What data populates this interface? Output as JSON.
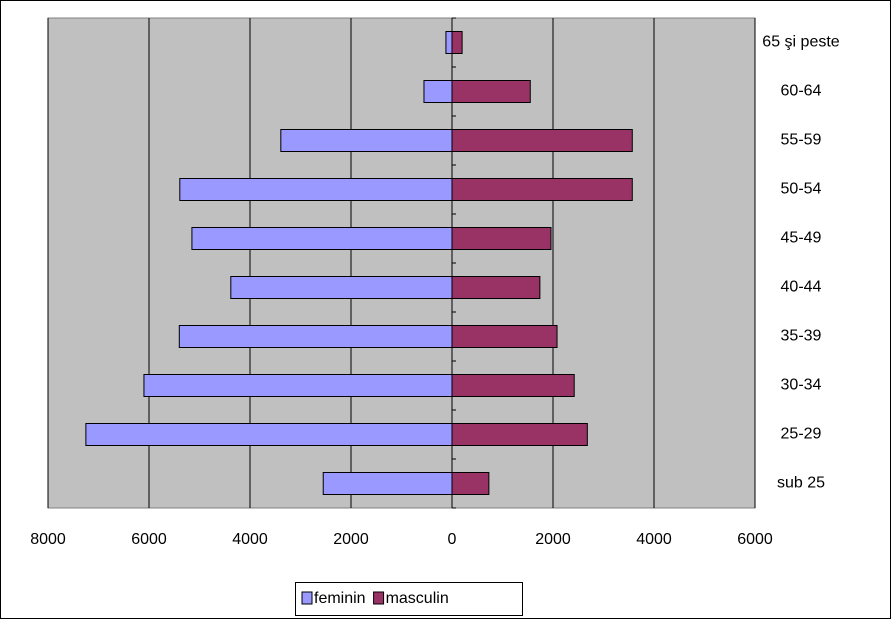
{
  "chart_data": {
    "type": "pyramid",
    "categories": [
      "sub 25",
      "25-29",
      "30-34",
      "35-39",
      "40-44",
      "45-49",
      "50-54",
      "55-59",
      "60-64",
      "65 şi peste"
    ],
    "series": [
      {
        "name": "feminin",
        "color": "#9999ff",
        "values": [
          -2550,
          -7250,
          -6100,
          -5400,
          -4380,
          -5150,
          -5390,
          -3390,
          -555,
          -120
        ]
      },
      {
        "name": "masculin",
        "color": "#993366",
        "values": [
          730,
          2680,
          2420,
          2080,
          1740,
          1960,
          3570,
          3570,
          1550,
          200
        ]
      }
    ],
    "xlim": [
      -8000,
      6000
    ],
    "xticks": [
      {
        "value": -8000,
        "label": "8000"
      },
      {
        "value": -6000,
        "label": "6000"
      },
      {
        "value": -4000,
        "label": "4000"
      },
      {
        "value": -2000,
        "label": "2000"
      },
      0,
      2000,
      4000,
      6000
    ],
    "grid": true,
    "plot_background": "#c0c0c0",
    "legend": "bottom"
  }
}
